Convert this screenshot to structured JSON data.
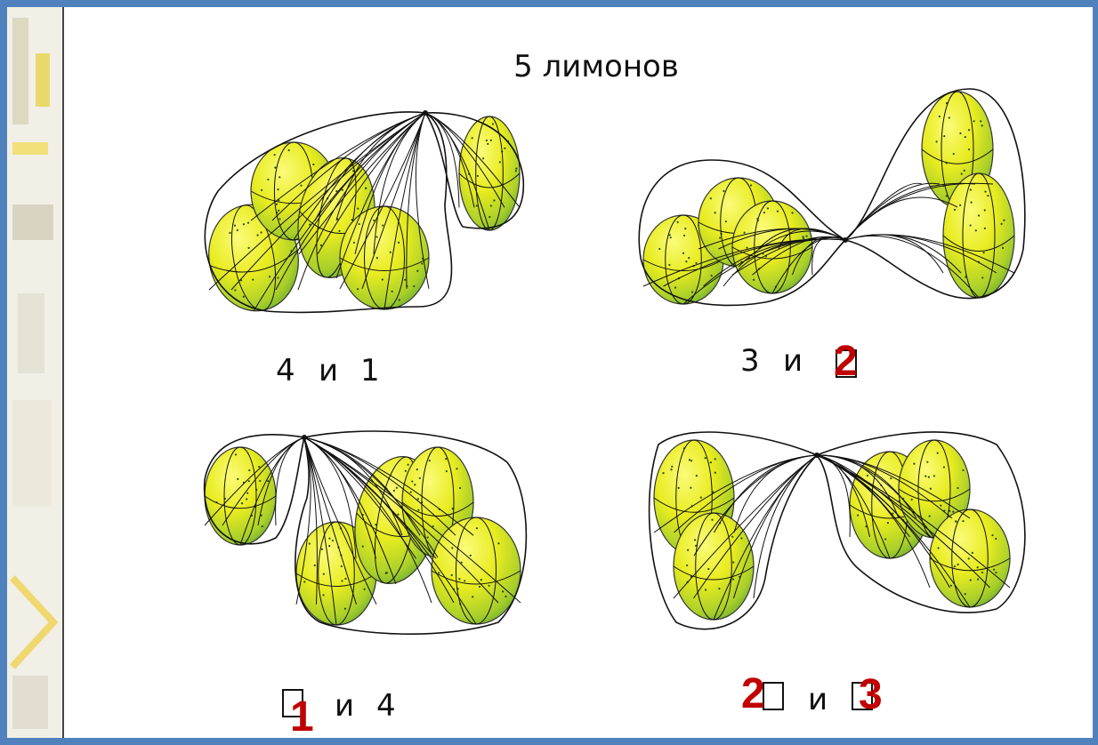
{
  "title": "5 лимонов",
  "groups": [
    {
      "left": "4",
      "conj": "и",
      "right": "1"
    },
    {
      "left": "3",
      "conj": "и",
      "right": "2"
    },
    {
      "left": "1",
      "conj": "и",
      "right": "4"
    },
    {
      "left": "2",
      "conj": "и",
      "right": "3"
    }
  ]
}
